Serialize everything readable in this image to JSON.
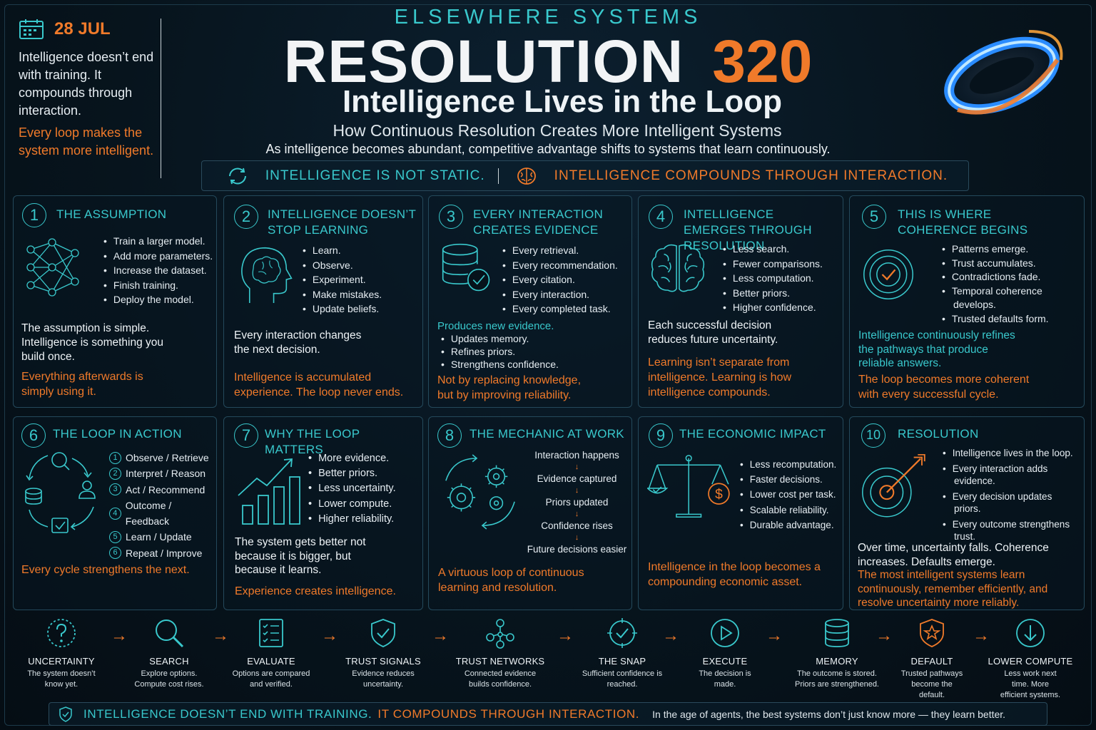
{
  "date": {
    "label": "28 JUL",
    "text": "Intelligence doesn’t end with training. It compounds through interaction.",
    "highlight": "Every loop makes the system more intelligent."
  },
  "header": {
    "brand": "ELSEWHERE SYSTEMS",
    "title": "RESOLUTION",
    "number": "320",
    "subtitle": "Intelligence Lives in the Loop",
    "subtitle2": "How Continuous Resolution Creates More Intelligent Systems",
    "tagline": "As intelligence becomes abundant, competitive advantage shifts to systems that learn continuously."
  },
  "banner": {
    "left": "INTELLIGENCE IS NOT STATIC.",
    "right": "INTELLIGENCE COMPOUNDS THROUGH INTERACTION."
  },
  "panels": [
    {
      "num": "1",
      "title": "THE ASSUMPTION",
      "bullets": [
        "Train a larger model.",
        "Add more parameters.",
        "Increase the dataset.",
        "Finish training.",
        "Deploy the model."
      ],
      "text": "The assumption is simple. Intelligence is something you build once.",
      "highlight": "Everything afterwards is simply using it."
    },
    {
      "num": "2",
      "title": "INTELLIGENCE DOESN’T STOP LEARNING",
      "bullets": [
        "Learn.",
        "Observe.",
        "Experiment.",
        "Make mistakes.",
        "Update beliefs."
      ],
      "text": "Every interaction changes the next decision.",
      "highlight": "Intelligence is accumulated experience. The loop never ends."
    },
    {
      "num": "3",
      "title": "EVERY INTERACTION CREATES EVIDENCE",
      "bullets": [
        "Every retrieval.",
        "Every recommendation.",
        "Every citation.",
        "Every interaction.",
        "Every completed task."
      ],
      "teal": "Produces new evidence.",
      "bullets2": [
        "Updates memory.",
        "Refines priors.",
        "Strengthens confidence."
      ],
      "highlight": "Not by replacing knowledge, but by improving reliability."
    },
    {
      "num": "4",
      "title": "INTELLIGENCE EMERGES THROUGH RESOLUTION",
      "bullets": [
        "Less search.",
        "Fewer comparisons.",
        "Less computation.",
        "Better priors.",
        "Higher confidence."
      ],
      "text": "Each successful decision reduces future uncertainty.",
      "highlight": "Learning isn’t separate from intelligence. Learning is how intelligence compounds."
    },
    {
      "num": "5",
      "title": "THIS IS WHERE COHERENCE BEGINS",
      "bullets": [
        "Patterns emerge.",
        "Trust accumulates.",
        "Contradictions fade.",
        "Temporal coherence develops.",
        "Trusted defaults form."
      ],
      "teal": "Intelligence continuously refines the pathways that produce reliable answers.",
      "highlight": "The loop becomes more coherent with every successful cycle."
    },
    {
      "num": "6",
      "title": "THE LOOP IN ACTION",
      "steps": [
        "Observe / Retrieve",
        "Interpret / Reason",
        "Act / Recommend",
        "Outcome / Feedback",
        "Learn / Update",
        "Repeat / Improve"
      ],
      "highlight": "Every cycle strengthens the next."
    },
    {
      "num": "7",
      "title": "WHY THE LOOP MATTERS",
      "bullets": [
        "More evidence.",
        "Better priors.",
        "Less uncertainty.",
        "Lower compute.",
        "Higher reliability."
      ],
      "text": "The system gets better not because it is bigger, but because it learns.",
      "highlight": "Experience creates intelligence."
    },
    {
      "num": "8",
      "title": "THE MECHANIC AT WORK",
      "steps": [
        "Interaction happens",
        "Evidence captured",
        "Priors updated",
        "Confidence rises",
        "Future decisions easier"
      ],
      "highlight": "A virtuous loop of continuous learning and resolution."
    },
    {
      "num": "9",
      "title": "THE ECONOMIC IMPACT",
      "bullets": [
        "Less recomputation.",
        "Faster decisions.",
        "Lower cost per task.",
        "Scalable reliability.",
        "Durable advantage."
      ],
      "highlight": "Intelligence in the loop becomes a compounding economic asset."
    },
    {
      "num": "10",
      "title": "RESOLUTION",
      "bullets": [
        "Intelligence lives in the loop.",
        "Every interaction adds evidence.",
        "Every decision updates priors.",
        "Every outcome strengthens trust."
      ],
      "text": "Over time, uncertainty falls. Coherence increases. Defaults emerge.",
      "highlight": "The most intelligent systems learn continuously, remember efficiently, and resolve uncertainty more reliably."
    }
  ],
  "flow": [
    {
      "label": "UNCERTAINTY",
      "desc": "The system doesn’t know yet.",
      "icon": "question-icon"
    },
    {
      "label": "SEARCH",
      "desc": "Explore options. Compute cost rises.",
      "icon": "search-icon"
    },
    {
      "label": "EVALUATE",
      "desc": "Options are compared and verified.",
      "icon": "checklist-icon"
    },
    {
      "label": "TRUST SIGNALS",
      "desc": "Evidence reduces uncertainty.",
      "icon": "shield-check-icon"
    },
    {
      "label": "TRUST NETWORKS",
      "desc": "Connected evidence builds confidence.",
      "icon": "network-icon"
    },
    {
      "label": "THE SNAP",
      "desc": "Sufficient confidence is reached.",
      "icon": "target-check-icon"
    },
    {
      "label": "EXECUTE",
      "desc": "The decision is made.",
      "icon": "play-icon"
    },
    {
      "label": "MEMORY",
      "desc": "The outcome is stored. Priors are strengthened.",
      "icon": "database-icon"
    },
    {
      "label": "DEFAULT",
      "desc": "Trusted pathways become the default.",
      "icon": "star-shield-icon"
    },
    {
      "label": "LOWER COMPUTE",
      "desc": "Less work next time. More efficient systems.",
      "icon": "arrow-down-icon"
    }
  ],
  "footer": {
    "part1": "INTELLIGENCE DOESN’T END WITH TRAINING.",
    "part2": "IT COMPOUNDS THROUGH INTERACTION.",
    "part3": "In the age of agents, the best systems don’t just know more — they learn better."
  },
  "colors": {
    "teal": "#39c8cc",
    "orange": "#f07a2a",
    "background": "#06121b"
  }
}
